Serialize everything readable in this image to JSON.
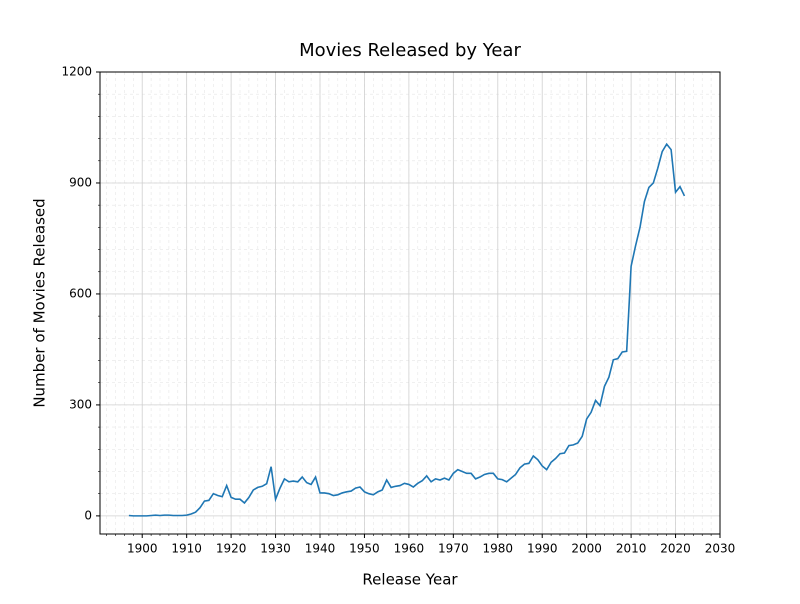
{
  "chart_data": {
    "type": "line",
    "title": "Movies Released by Year",
    "xlabel": "Release Year",
    "ylabel": "Number of Movies Released",
    "x": [
      1897,
      1898,
      1899,
      1900,
      1901,
      1902,
      1903,
      1904,
      1905,
      1906,
      1907,
      1908,
      1909,
      1910,
      1911,
      1912,
      1913,
      1914,
      1915,
      1916,
      1917,
      1918,
      1919,
      1920,
      1921,
      1922,
      1923,
      1924,
      1925,
      1926,
      1927,
      1928,
      1929,
      1930,
      1931,
      1932,
      1933,
      1934,
      1935,
      1936,
      1937,
      1938,
      1939,
      1940,
      1941,
      1942,
      1943,
      1944,
      1945,
      1946,
      1947,
      1948,
      1949,
      1950,
      1951,
      1952,
      1953,
      1954,
      1955,
      1956,
      1957,
      1958,
      1959,
      1960,
      1961,
      1962,
      1963,
      1964,
      1965,
      1966,
      1967,
      1968,
      1969,
      1970,
      1971,
      1972,
      1973,
      1974,
      1975,
      1976,
      1977,
      1978,
      1979,
      1980,
      1981,
      1982,
      1983,
      1984,
      1985,
      1986,
      1987,
      1988,
      1989,
      1990,
      1991,
      1992,
      1993,
      1994,
      1995,
      1996,
      1997,
      1998,
      1999,
      2000,
      2001,
      2002,
      2003,
      2004,
      2005,
      2006,
      2007,
      2008,
      2009,
      2010,
      2011,
      2012,
      2013,
      2014,
      2015,
      2016,
      2017,
      2018,
      2019,
      2020,
      2021,
      2022
    ],
    "series": [
      {
        "name": "Movies",
        "color": "#1f77b4",
        "values": [
          1,
          0,
          0,
          0,
          0,
          1,
          2,
          1,
          2,
          2,
          1,
          1,
          1,
          2,
          5,
          10,
          22,
          40,
          42,
          60,
          55,
          52,
          82,
          50,
          45,
          45,
          35,
          50,
          70,
          77,
          80,
          87,
          133,
          45,
          75,
          100,
          92,
          94,
          92,
          105,
          90,
          85,
          105,
          62,
          62,
          60,
          55,
          57,
          62,
          65,
          67,
          75,
          78,
          65,
          60,
          57,
          65,
          70,
          97,
          77,
          80,
          82,
          88,
          85,
          78,
          88,
          95,
          108,
          92,
          100,
          97,
          102,
          97,
          115,
          125,
          120,
          115,
          115,
          100,
          105,
          112,
          115,
          115,
          100,
          98,
          92,
          102,
          112,
          130,
          140,
          142,
          162,
          152,
          135,
          125,
          145,
          155,
          168,
          170,
          190,
          192,
          197,
          215,
          262,
          280,
          312,
          298,
          350,
          375,
          422,
          425,
          443,
          445,
          675,
          730,
          780,
          850,
          888,
          900,
          940,
          985,
          1005,
          990,
          875,
          890,
          865
        ]
      }
    ],
    "xlim": [
      1890.5,
      2030
    ],
    "ylim": [
      -49,
      1200
    ],
    "xticks": [
      1900,
      1910,
      1920,
      1930,
      1940,
      1950,
      1960,
      1970,
      1980,
      1990,
      2000,
      2010,
      2020,
      2030
    ],
    "yticks": [
      0,
      300,
      600,
      900,
      1200
    ],
    "grid": true,
    "minor_grid": true
  }
}
